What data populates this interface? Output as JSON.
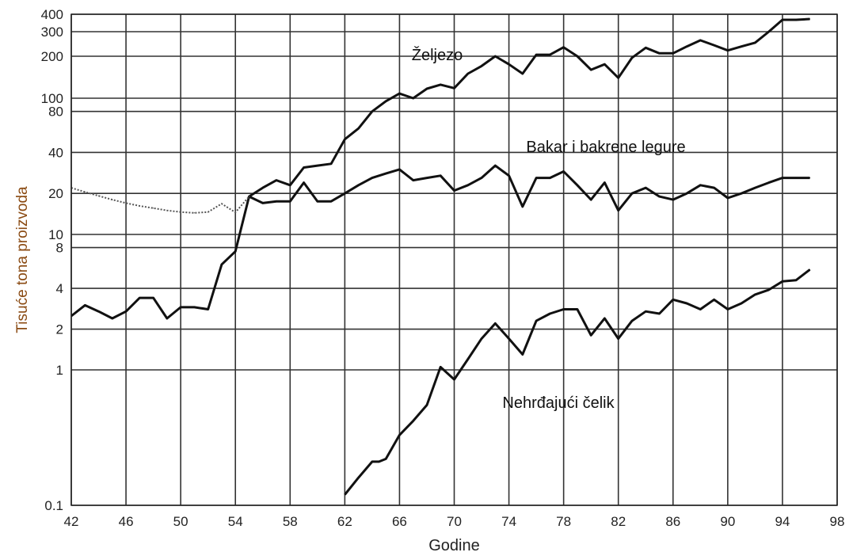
{
  "chart_data": {
    "type": "line",
    "title": "",
    "xlabel": "Godine",
    "ylabel": "Tisuće tona proizvoda",
    "y_scale": "log",
    "xlim": [
      42,
      98
    ],
    "ylim": [
      0.1,
      400
    ],
    "grid": true,
    "x_ticks": [
      "42",
      "46",
      "50",
      "54",
      "58",
      "62",
      "66",
      "70",
      "74",
      "78",
      "82",
      "86",
      "90",
      "94",
      "98"
    ],
    "y_ticks": [
      "400",
      "300",
      "200",
      "100",
      "80",
      "40",
      "20",
      "10",
      "8",
      "4",
      "2",
      "1",
      "0.1"
    ],
    "series": [
      {
        "name": "Željezo",
        "x": [
          42,
          43,
          44,
          45,
          46,
          47,
          48,
          49,
          50,
          51,
          52,
          53,
          54,
          55,
          56,
          57,
          58,
          59,
          60,
          61,
          62,
          63,
          64,
          65,
          66,
          67,
          68,
          69,
          70,
          71,
          72,
          73,
          74,
          75,
          76,
          77,
          78,
          79,
          80,
          81,
          82,
          83,
          84,
          85,
          86,
          87,
          88,
          89,
          90,
          91,
          92,
          93,
          94,
          95,
          96
        ],
        "y": [
          2.5,
          3.0,
          2.7,
          2.4,
          2.7,
          3.4,
          3.4,
          2.4,
          2.9,
          2.9,
          2.8,
          6.0,
          7.5,
          19,
          22,
          25,
          23,
          31,
          32,
          33,
          50,
          60,
          80,
          95,
          108,
          100,
          117,
          125,
          118,
          150,
          170,
          200,
          175,
          150,
          205,
          205,
          232,
          200,
          160,
          175,
          140,
          195,
          230,
          210,
          210,
          235,
          260,
          240,
          220,
          235,
          250,
          300,
          365,
          365,
          370
        ]
      },
      {
        "name": "Bakar i bakrene legure",
        "x": [
          55,
          56,
          57,
          58,
          59,
          60,
          61,
          62,
          63,
          64,
          65,
          66,
          67,
          68,
          69,
          70,
          71,
          72,
          73,
          74,
          75,
          76,
          77,
          78,
          79,
          80,
          81,
          82,
          83,
          84,
          85,
          86,
          87,
          88,
          89,
          90,
          91,
          92,
          93,
          94,
          95,
          96
        ],
        "y": [
          19,
          17,
          17.5,
          17.5,
          24,
          17.5,
          17.5,
          20,
          23,
          26,
          28,
          30,
          25,
          26,
          27,
          21,
          23,
          26,
          32,
          27,
          16,
          26,
          26,
          29,
          23,
          18,
          24,
          15,
          20,
          22,
          19,
          18,
          20,
          23,
          22,
          18.5,
          20,
          22,
          24,
          26,
          26,
          26
        ]
      },
      {
        "name": "",
        "dashed": true,
        "x": [
          42,
          43,
          44,
          45,
          46,
          47,
          48,
          49,
          50,
          51,
          52,
          53,
          54,
          55
        ],
        "y": [
          22,
          20.5,
          19.2,
          18,
          17,
          16.2,
          15.6,
          15,
          14.6,
          14.4,
          14.6,
          16.8,
          14.5,
          19
        ]
      },
      {
        "name": "Nehrđajući čelik",
        "x": [
          62,
          63,
          64,
          64.5,
          65,
          66,
          67,
          68,
          69,
          70,
          71,
          72,
          73,
          74,
          75,
          76,
          77,
          78,
          79,
          80,
          81,
          82,
          83,
          84,
          85,
          86,
          87,
          88,
          89,
          90,
          91,
          92,
          93,
          94,
          95,
          96
        ],
        "y": [
          0.12,
          0.16,
          0.21,
          0.21,
          0.22,
          0.33,
          0.42,
          0.55,
          1.05,
          0.85,
          1.2,
          1.7,
          2.2,
          1.7,
          1.3,
          2.3,
          2.6,
          2.8,
          2.8,
          1.8,
          2.4,
          1.7,
          2.3,
          2.7,
          2.6,
          3.3,
          3.1,
          2.8,
          3.3,
          2.8,
          3.1,
          3.6,
          3.9,
          4.5,
          4.6,
          5.5
        ]
      }
    ],
    "annotations": [
      "Željezo",
      "Bakar i bakrene legure",
      "Nehrđajući čelik"
    ]
  }
}
